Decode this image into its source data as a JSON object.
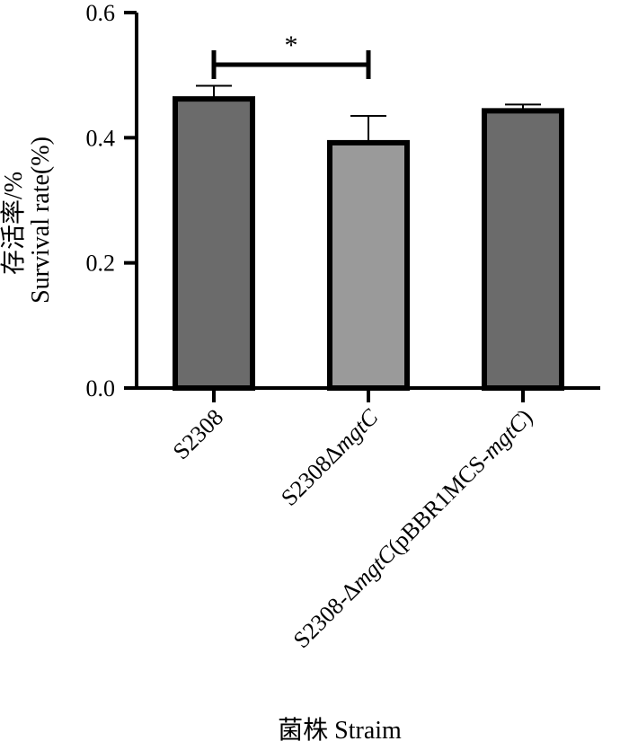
{
  "chart_data": {
    "type": "bar",
    "title": "",
    "ylabel_cn": "存活率/%",
    "ylabel": "Survival rate(%)",
    "xlabel": "菌株 Straim",
    "ylim": [
      0,
      0.6
    ],
    "yticks": [
      "0.0",
      "0.2",
      "0.4",
      "0.6"
    ],
    "ytick_values": [
      0,
      0.2,
      0.4,
      0.6
    ],
    "grid": false,
    "legend": "none",
    "categories": [
      "S2308",
      "S2308ΔmgtC",
      "S2308-ΔmgtC(pBBR1MCS-mgtC)"
    ],
    "category_parts": [
      [
        {
          "text": "S2308",
          "italic": false
        }
      ],
      [
        {
          "text": "S2308Δ",
          "italic": false
        },
        {
          "text": "mgtC",
          "italic": true
        }
      ],
      [
        {
          "text": "S2308-Δ",
          "italic": false
        },
        {
          "text": "mgtC",
          "italic": true
        },
        {
          "text": "(pBBR1MCS-",
          "italic": false
        },
        {
          "text": "mgtC",
          "italic": true
        },
        {
          "text": ")",
          "italic": false
        }
      ]
    ],
    "values": [
      0.462,
      0.392,
      0.443
    ],
    "errors": [
      0.021,
      0.043,
      0.01
    ],
    "bar_colors": [
      "#6b6b6b",
      "#9a9a9a",
      "#6b6b6b"
    ],
    "significance": [
      {
        "from": 0,
        "to": 1,
        "label": "*"
      }
    ]
  }
}
